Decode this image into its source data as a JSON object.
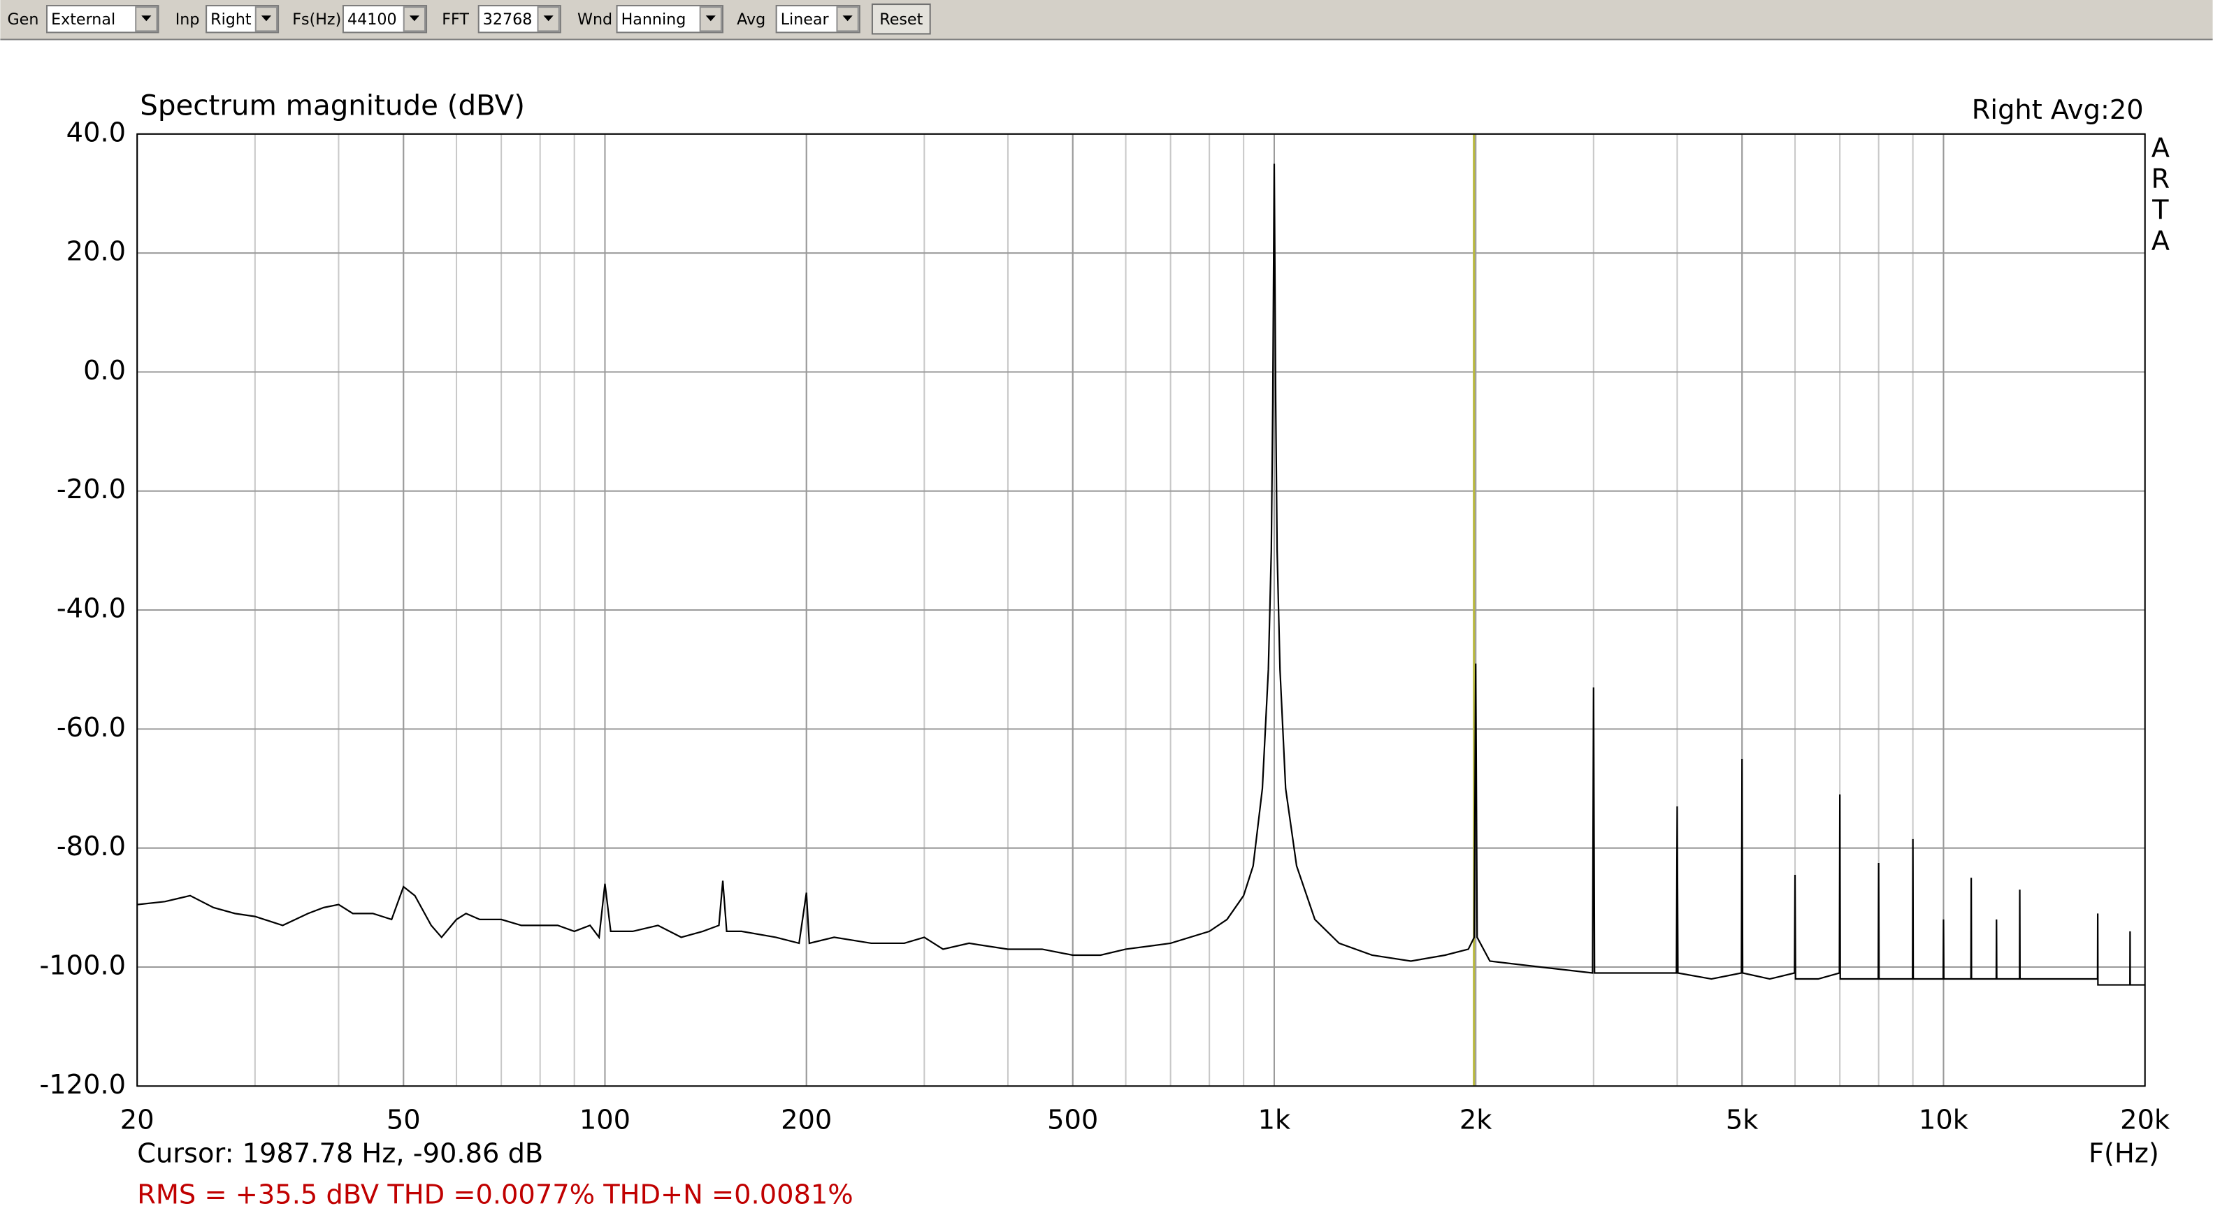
{
  "toolbar": {
    "fields": [
      {
        "label": "Gen",
        "value": "External"
      },
      {
        "label": "Inp",
        "value": "Right"
      },
      {
        "label": "Fs(Hz)",
        "value": "44100"
      },
      {
        "label": "FFT",
        "value": "32768"
      },
      {
        "label": "Wnd",
        "value": "Hanning"
      },
      {
        "label": "Avg",
        "value": "Linear"
      }
    ],
    "button": "Reset"
  },
  "chart_data": {
    "type": "line",
    "title": "Spectrum magnitude (dBV)",
    "channel_label": "Right  Avg:20",
    "brand": "ARTA",
    "x_label": "F(Hz)",
    "cursor_text": "Cursor: 1987.78 Hz, -90.86 dB",
    "stats_text": "RMS =  +35.5 dBV  THD =0.0077%  THD+N =0.0081%",
    "cursor": {
      "x": 1987.78,
      "color": "#b8b840"
    },
    "x_log": true,
    "grid": true,
    "xlim": [
      20,
      20000
    ],
    "xticks": [
      20,
      50,
      100,
      200,
      500,
      {
        "value": 1000,
        "label": "1k"
      },
      {
        "value": 2000,
        "label": "2k"
      },
      {
        "value": 5000,
        "label": "5k"
      },
      {
        "value": 10000,
        "label": "10k"
      },
      {
        "value": 20000,
        "label": "20k"
      }
    ],
    "ylim": [
      -120,
      40
    ],
    "yticks": [
      {
        "value": -120,
        "label": "-120.0"
      },
      {
        "value": -100,
        "label": "-100.0"
      },
      {
        "value": -80,
        "label": "-80.0"
      },
      {
        "value": -60,
        "label": "-60.0"
      },
      {
        "value": -40,
        "label": "-40.0"
      },
      {
        "value": -20,
        "label": "-20.0"
      },
      {
        "value": 0,
        "label": "0.0"
      },
      {
        "value": 20,
        "label": "20.0"
      },
      {
        "value": 40,
        "label": "40.0"
      }
    ],
    "x": [
      20,
      22,
      24,
      26,
      28,
      30,
      33,
      36,
      38,
      40,
      42,
      45,
      48,
      50,
      52,
      55,
      57,
      60,
      62,
      65,
      70,
      75,
      80,
      85,
      90,
      95,
      98,
      100,
      102,
      110,
      120,
      130,
      140,
      148,
      150,
      152,
      160,
      180,
      195,
      200,
      202,
      220,
      250,
      280,
      300,
      320,
      350,
      400,
      450,
      500,
      550,
      600,
      700,
      800,
      850,
      900,
      930,
      960,
      980,
      990,
      995,
      1000,
      1005,
      1010,
      1020,
      1040,
      1080,
      1150,
      1250,
      1400,
      1600,
      1800,
      1950,
      1990,
      2000,
      2010,
      2100,
      2500,
      2990,
      3000,
      3010,
      3500,
      3990,
      4000,
      4010,
      4500,
      4990,
      5000,
      5010,
      5500,
      5990,
      6000,
      6010,
      6500,
      6990,
      7000,
      7010,
      7500,
      7990,
      8000,
      8010,
      8500,
      8990,
      9000,
      9010,
      9500,
      9990,
      10000,
      10010,
      10990,
      11000,
      11010,
      11990,
      12000,
      12010,
      12990,
      13000,
      13010,
      15000,
      16990,
      17000,
      17010,
      18990,
      19000,
      19010,
      20000
    ],
    "series": [
      {
        "name": "Right",
        "color": "#000000",
        "values": [
          -89.5,
          -89,
          -88,
          -90,
          -91,
          -91.5,
          -93,
          -91,
          -90,
          -89.5,
          -91,
          -91,
          -92,
          -86.5,
          -88,
          -93,
          -95,
          -92,
          -91,
          -92,
          -92,
          -93,
          -93,
          -93,
          -94,
          -93,
          -95,
          -86,
          -94,
          -94,
          -93,
          -95,
          -94,
          -93,
          -85.5,
          -94,
          -94,
          -95,
          -96,
          -87.5,
          -96,
          -95,
          -96,
          -96,
          -95,
          -97,
          -96,
          -97,
          -97,
          -98,
          -98,
          -97,
          -96,
          -94,
          -92,
          -88,
          -83,
          -70,
          -50,
          -30,
          -5,
          35,
          -5,
          -30,
          -50,
          -70,
          -83,
          -92,
          -96,
          -98,
          -99,
          -98,
          -97,
          -95,
          -49,
          -95,
          -99,
          -100,
          -101,
          -53,
          -101,
          -101,
          -101,
          -73,
          -101,
          -102,
          -101,
          -65,
          -101,
          -102,
          -101,
          -84.5,
          -102,
          -102,
          -101,
          -71,
          -102,
          -102,
          -102,
          -82.5,
          -102,
          -102,
          -102,
          -78.5,
          -102,
          -102,
          -102,
          -92,
          -102,
          -102,
          -85,
          -102,
          -102,
          -92,
          -102,
          -102,
          -87,
          -102,
          -102,
          -102,
          -91,
          -103,
          -103,
          -94,
          -103,
          -103
        ]
      }
    ]
  }
}
